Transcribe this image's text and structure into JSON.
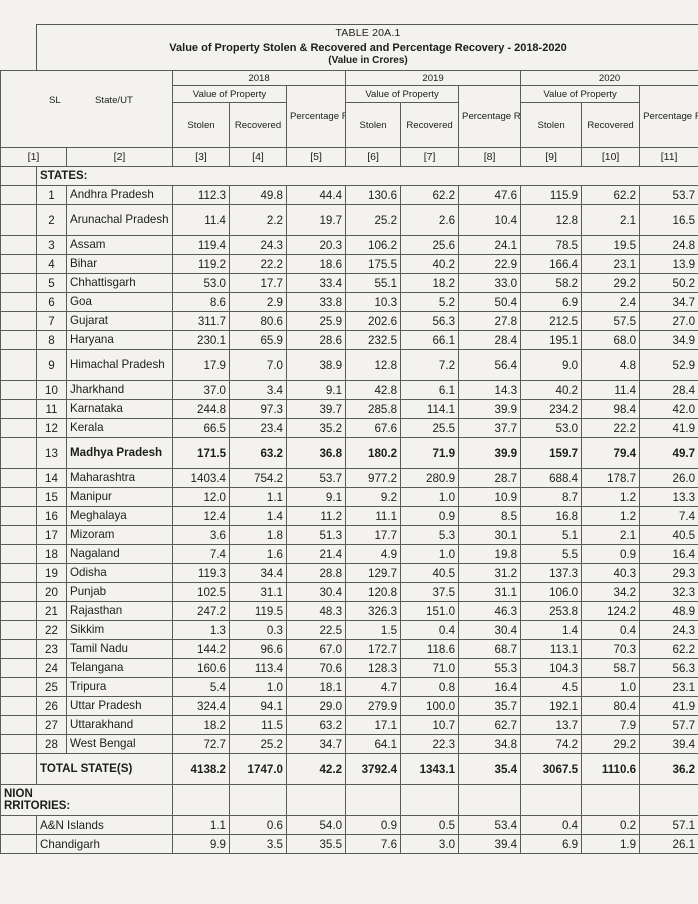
{
  "doc": {
    "table_no": "TABLE 20A.1",
    "title": "Value of Property Stolen & Recovered and Percentage Recovery - 2018-2020",
    "unit": "(Value in Crores)"
  },
  "headers": {
    "sl": "SL",
    "state": "State/UT",
    "years": [
      "2018",
      "2019",
      "2020"
    ],
    "value_of_property": "Value of Property",
    "stolen": "Stolen",
    "recovered": "Recovered",
    "pct": "Percentage Recovery of Stolen Property",
    "pct_2020": "Percentage Recovery of Stolen Property",
    "col_numbers": [
      "[1]",
      "[2]",
      "[3]",
      "[4]",
      "[5]",
      "[6]",
      "[7]",
      "[8]",
      "[9]",
      "[10]",
      "[11]"
    ]
  },
  "sections": {
    "states": "STATES:",
    "uts_line1": "NION",
    "uts_line2": "RRITORIES:"
  },
  "rows": [
    {
      "sl": "1",
      "state": "Andhra Pradesh",
      "v": [
        "112.3",
        "49.8",
        "44.4",
        "130.6",
        "62.2",
        "47.6",
        "115.9",
        "62.2",
        "53.7"
      ]
    },
    {
      "sl": "2",
      "state": "Arunachal Pradesh",
      "v": [
        "11.4",
        "2.2",
        "19.7",
        "25.2",
        "2.6",
        "10.4",
        "12.8",
        "2.1",
        "16.5"
      ],
      "tall": true
    },
    {
      "sl": "3",
      "state": "Assam",
      "v": [
        "119.4",
        "24.3",
        "20.3",
        "106.2",
        "25.6",
        "24.1",
        "78.5",
        "19.5",
        "24.8"
      ]
    },
    {
      "sl": "4",
      "state": "Bihar",
      "v": [
        "119.2",
        "22.2",
        "18.6",
        "175.5",
        "40.2",
        "22.9",
        "166.4",
        "23.1",
        "13.9"
      ]
    },
    {
      "sl": "5",
      "state": "Chhattisgarh",
      "v": [
        "53.0",
        "17.7",
        "33.4",
        "55.1",
        "18.2",
        "33.0",
        "58.2",
        "29.2",
        "50.2"
      ]
    },
    {
      "sl": "6",
      "state": "Goa",
      "v": [
        "8.6",
        "2.9",
        "33.8",
        "10.3",
        "5.2",
        "50.4",
        "6.9",
        "2.4",
        "34.7"
      ]
    },
    {
      "sl": "7",
      "state": "Gujarat",
      "v": [
        "311.7",
        "80.6",
        "25.9",
        "202.6",
        "56.3",
        "27.8",
        "212.5",
        "57.5",
        "27.0"
      ]
    },
    {
      "sl": "8",
      "state": "Haryana",
      "v": [
        "230.1",
        "65.9",
        "28.6",
        "232.5",
        "66.1",
        "28.4",
        "195.1",
        "68.0",
        "34.9"
      ]
    },
    {
      "sl": "9",
      "state": "Himachal Pradesh",
      "v": [
        "17.9",
        "7.0",
        "38.9",
        "12.8",
        "7.2",
        "56.4",
        "9.0",
        "4.8",
        "52.9"
      ],
      "tall": true
    },
    {
      "sl": "10",
      "state": "Jharkhand",
      "v": [
        "37.0",
        "3.4",
        "9.1",
        "42.8",
        "6.1",
        "14.3",
        "40.2",
        "11.4",
        "28.4"
      ]
    },
    {
      "sl": "11",
      "state": "Karnataka",
      "v": [
        "244.8",
        "97.3",
        "39.7",
        "285.8",
        "114.1",
        "39.9",
        "234.2",
        "98.4",
        "42.0"
      ]
    },
    {
      "sl": "12",
      "state": "Kerala",
      "v": [
        "66.5",
        "23.4",
        "35.2",
        "67.6",
        "25.5",
        "37.7",
        "53.0",
        "22.2",
        "41.9"
      ]
    },
    {
      "sl": "13",
      "state": "Madhya Pradesh",
      "v": [
        "171.5",
        "63.2",
        "36.8",
        "180.2",
        "71.9",
        "39.9",
        "159.7",
        "79.4",
        "49.7"
      ],
      "tall": true,
      "bold": true
    },
    {
      "sl": "14",
      "state": "Maharashtra",
      "v": [
        "1403.4",
        "754.2",
        "53.7",
        "977.2",
        "280.9",
        "28.7",
        "688.4",
        "178.7",
        "26.0"
      ]
    },
    {
      "sl": "15",
      "state": "Manipur",
      "v": [
        "12.0",
        "1.1",
        "9.1",
        "9.2",
        "1.0",
        "10.9",
        "8.7",
        "1.2",
        "13.3"
      ]
    },
    {
      "sl": "16",
      "state": "Meghalaya",
      "v": [
        "12.4",
        "1.4",
        "11.2",
        "11.1",
        "0.9",
        "8.5",
        "16.8",
        "1.2",
        "7.4"
      ]
    },
    {
      "sl": "17",
      "state": "Mizoram",
      "v": [
        "3.6",
        "1.8",
        "51.3",
        "17.7",
        "5.3",
        "30.1",
        "5.1",
        "2.1",
        "40.5"
      ]
    },
    {
      "sl": "18",
      "state": "Nagaland",
      "v": [
        "7.4",
        "1.6",
        "21.4",
        "4.9",
        "1.0",
        "19.8",
        "5.5",
        "0.9",
        "16.4"
      ]
    },
    {
      "sl": "19",
      "state": "Odisha",
      "v": [
        "119.3",
        "34.4",
        "28.8",
        "129.7",
        "40.5",
        "31.2",
        "137.3",
        "40.3",
        "29.3"
      ]
    },
    {
      "sl": "20",
      "state": "Punjab",
      "v": [
        "102.5",
        "31.1",
        "30.4",
        "120.8",
        "37.5",
        "31.1",
        "106.0",
        "34.2",
        "32.3"
      ]
    },
    {
      "sl": "21",
      "state": "Rajasthan",
      "v": [
        "247.2",
        "119.5",
        "48.3",
        "326.3",
        "151.0",
        "46.3",
        "253.8",
        "124.2",
        "48.9"
      ]
    },
    {
      "sl": "22",
      "state": "Sikkim",
      "v": [
        "1.3",
        "0.3",
        "22.5",
        "1.5",
        "0.4",
        "30.4",
        "1.4",
        "0.4",
        "24.3"
      ]
    },
    {
      "sl": "23",
      "state": "Tamil Nadu",
      "v": [
        "144.2",
        "96.6",
        "67.0",
        "172.7",
        "118.6",
        "68.7",
        "113.1",
        "70.3",
        "62.2"
      ]
    },
    {
      "sl": "24",
      "state": "Telangana",
      "v": [
        "160.6",
        "113.4",
        "70.6",
        "128.3",
        "71.0",
        "55.3",
        "104.3",
        "58.7",
        "56.3"
      ]
    },
    {
      "sl": "25",
      "state": "Tripura",
      "v": [
        "5.4",
        "1.0",
        "18.1",
        "4.7",
        "0.8",
        "16.4",
        "4.5",
        "1.0",
        "23.1"
      ]
    },
    {
      "sl": "26",
      "state": "Uttar Pradesh",
      "v": [
        "324.4",
        "94.1",
        "29.0",
        "279.9",
        "100.0",
        "35.7",
        "192.1",
        "80.4",
        "41.9"
      ]
    },
    {
      "sl": "27",
      "state": "Uttarakhand",
      "v": [
        "18.2",
        "11.5",
        "63.2",
        "17.1",
        "10.7",
        "62.7",
        "13.7",
        "7.9",
        "57.7"
      ]
    },
    {
      "sl": "28",
      "state": "West Bengal",
      "v": [
        "72.7",
        "25.2",
        "34.7",
        "64.1",
        "22.3",
        "34.8",
        "74.2",
        "29.2",
        "39.4"
      ]
    }
  ],
  "total": {
    "label": "TOTAL STATE(S)",
    "v": [
      "4138.2",
      "1747.0",
      "42.2",
      "3792.4",
      "1343.1",
      "35.4",
      "3067.5",
      "1110.6",
      "36.2"
    ]
  },
  "ut_rows": [
    {
      "state": "A&N Islands",
      "v": [
        "1.1",
        "0.6",
        "54.0",
        "0.9",
        "0.5",
        "53.4",
        "0.4",
        "0.2",
        "57.1"
      ]
    },
    {
      "state": "Chandigarh",
      "v": [
        "9.9",
        "3.5",
        "35.5",
        "7.6",
        "3.0",
        "39.4",
        "6.9",
        "1.9",
        "26.1"
      ]
    }
  ]
}
